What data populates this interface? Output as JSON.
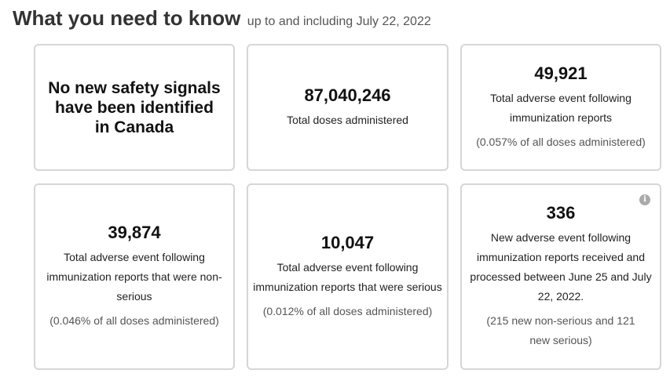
{
  "header": {
    "title": "What you need to know",
    "subtitle": "up to and including July 22, 2022"
  },
  "cards": {
    "signals": {
      "text": "No new safety signals have been identified in Canada"
    },
    "doses": {
      "value": "87,040,246",
      "label": "Total doses administered"
    },
    "total_reports": {
      "value": "49,921",
      "label": "Total adverse event following immunization reports",
      "note": "(0.057% of all doses administered)"
    },
    "non_serious": {
      "value": "39,874",
      "label": "Total adverse event following immunization reports that were non-serious",
      "note": "(0.046% of all doses administered)"
    },
    "serious": {
      "value": "10,047",
      "label": "Total adverse event following immunization reports that were serious",
      "note": "(0.012% of all doses administered)"
    },
    "new_reports": {
      "value": "336",
      "label": "New adverse event following immunization reports received and processed between June 25 and July 22, 2022.",
      "note": "(215 new non-serious and 121 new serious)",
      "info_icon": "info-icon"
    }
  },
  "colors": {
    "card_border": "#d6d6d6",
    "title": "#333333",
    "note": "#555555"
  }
}
